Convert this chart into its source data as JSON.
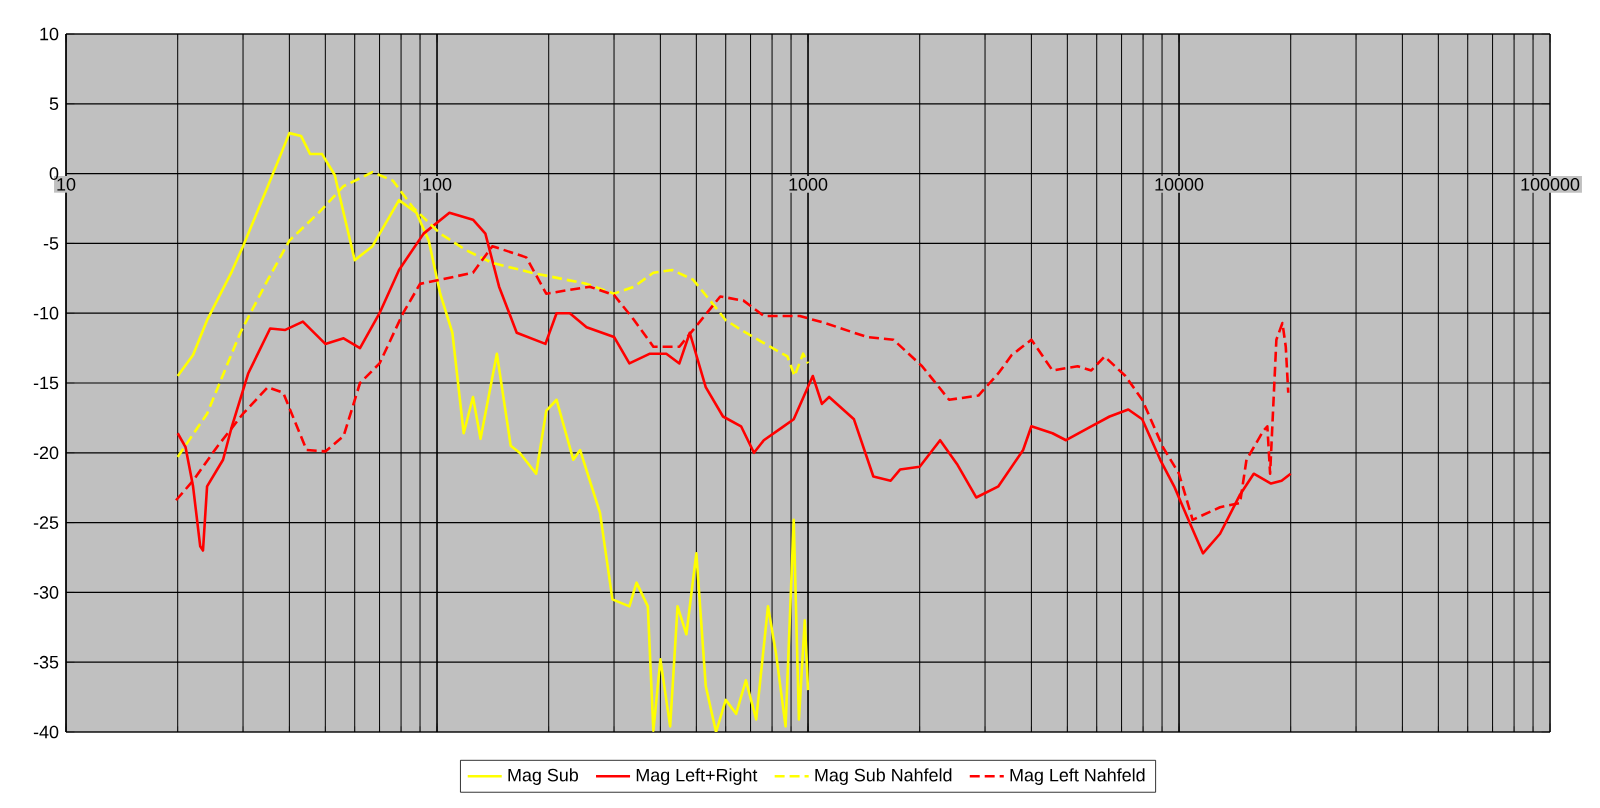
{
  "chart_data": {
    "type": "line",
    "log": "x",
    "grid": true,
    "legend": "bottom",
    "marker": "none",
    "xlim": [
      10,
      100000
    ],
    "xticks": [
      10,
      100,
      1000,
      10000,
      100000
    ],
    "ylim": [
      -40,
      10
    ],
    "yticks": [
      -40,
      -35,
      -30,
      -25,
      -20,
      -15,
      -10,
      -5,
      0,
      5,
      10
    ],
    "series": [
      {
        "name": "Mag Sub",
        "color": "#ffff00",
        "line_style": "solid",
        "x": [
          20,
          22,
          24,
          28,
          30,
          35,
          40,
          43,
          45.5,
          49,
          53,
          60,
          67,
          79,
          88,
          95,
          102,
          110,
          118,
          125,
          131,
          145,
          158,
          167,
          185,
          197,
          210,
          233,
          243,
          275,
          297,
          330,
          345,
          370,
          383,
          400,
          425,
          445,
          470,
          500,
          530,
          565,
          600,
          640,
          680,
          725,
          780,
          820,
          870,
          915,
          945,
          980,
          1000
        ],
        "values": [
          -14.5,
          -13,
          -10.5,
          -7,
          -5.2,
          -0.9,
          2.9,
          2.7,
          1.4,
          1.4,
          -0.1,
          -6.2,
          -5.2,
          -1.9,
          -2.8,
          -4.8,
          -8.6,
          -11.4,
          -18.6,
          -16,
          -19,
          -12.9,
          -19.5,
          -20,
          -21.5,
          -17,
          -16.2,
          -20.5,
          -19.8,
          -24.3,
          -30.5,
          -31,
          -29.3,
          -31,
          -39.9,
          -34.8,
          -39.6,
          -31,
          -33,
          -27.2,
          -36.7,
          -40,
          -37.7,
          -38.7,
          -36.3,
          -39.1,
          -31,
          -34.4,
          -39.6,
          -24.8,
          -39.1,
          -32,
          -37
        ]
      },
      {
        "name": "Mag Left+Right",
        "color": "#ff0000",
        "line_style": "solid",
        "x": [
          20,
          21,
          22,
          23,
          23.4,
          24,
          26.5,
          28,
          31,
          35.5,
          39,
          43.5,
          50,
          56,
          62,
          70,
          79,
          92,
          108,
          125,
          135,
          147,
          164,
          196,
          210,
          228,
          253,
          300,
          330,
          375,
          415,
          450,
          480,
          530,
          590,
          660,
          715,
          760,
          850,
          915,
          1030,
          1090,
          1140,
          1330,
          1500,
          1670,
          1770,
          2000,
          2270,
          2520,
          2840,
          3260,
          3800,
          4000,
          4560,
          4960,
          5800,
          6500,
          7300,
          7960,
          8900,
          9700,
          10600,
          11600,
          12900,
          14600,
          15900,
          17700,
          18900,
          20000
        ],
        "values": [
          -18.6,
          -19.6,
          -22.4,
          -26.7,
          -27,
          -22.4,
          -20.5,
          -18.1,
          -14.3,
          -11.1,
          -11.2,
          -10.6,
          -12.2,
          -11.8,
          -12.5,
          -10,
          -6.9,
          -4.3,
          -2.8,
          -3.3,
          -4.3,
          -8.1,
          -11.4,
          -12.2,
          -10,
          -10,
          -11,
          -11.7,
          -13.6,
          -12.9,
          -12.9,
          -13.6,
          -11.4,
          -15.3,
          -17.4,
          -18.1,
          -20,
          -19.1,
          -18.2,
          -17.6,
          -14.5,
          -16.5,
          -16,
          -17.6,
          -21.7,
          -22,
          -21.2,
          -21,
          -19.1,
          -20.8,
          -23.2,
          -22.4,
          -19.8,
          -18.1,
          -18.6,
          -19.1,
          -18.1,
          -17.4,
          -16.9,
          -17.6,
          -20.5,
          -22.4,
          -24.8,
          -27.2,
          -25.8,
          -23,
          -21.5,
          -22.2,
          -22,
          -21.5
        ]
      },
      {
        "name": "Mag Sub Nahfeld",
        "color": "#ffff00",
        "line_style": "dashed",
        "x": [
          20,
          24,
          29.5,
          35,
          40,
          48,
          56,
          67,
          76,
          86,
          102,
          120,
          141,
          180,
          253,
          300,
          340,
          383,
          430,
          490,
          545,
          600,
          680,
          790,
          880,
          920,
          970,
          1000
        ],
        "values": [
          -20.3,
          -17.2,
          -11.4,
          -7.6,
          -4.8,
          -2.8,
          -0.9,
          0.1,
          -0.5,
          -2.4,
          -4.3,
          -5.5,
          -6.4,
          -7.1,
          -7.9,
          -8.6,
          -8.1,
          -7.1,
          -6.9,
          -7.6,
          -9.1,
          -10.5,
          -11.4,
          -12.4,
          -13.1,
          -14.5,
          -12.9,
          -13.6
        ]
      },
      {
        "name": "Mag Left Nahfeld",
        "color": "#ff0000",
        "line_style": "dashed",
        "x": [
          19.8,
          22,
          25.5,
          30,
          35,
          38.5,
          44.5,
          50,
          56,
          62,
          70,
          81,
          90,
          102,
          125,
          141,
          174,
          197,
          258,
          300,
          340,
          383,
          450,
          515,
          580,
          670,
          760,
          950,
          1110,
          1440,
          1700,
          2030,
          2400,
          2880,
          3260,
          3540,
          4000,
          4560,
          5330,
          5800,
          6300,
          7170,
          7960,
          9050,
          10000,
          10880,
          12900,
          14600,
          15200,
          16900,
          17300,
          17600,
          18300,
          19000,
          19400,
          19700
        ],
        "values": [
          -23.4,
          -22,
          -19.6,
          -17.2,
          -15.3,
          -15.7,
          -19.8,
          -19.9,
          -18.8,
          -15,
          -13.6,
          -10,
          -7.9,
          -7.6,
          -7.1,
          -5.2,
          -6,
          -8.6,
          -8.1,
          -8.7,
          -10.5,
          -12.4,
          -12.4,
          -10.5,
          -8.8,
          -9.1,
          -10.2,
          -10.2,
          -10.7,
          -11.7,
          -11.9,
          -13.8,
          -16.2,
          -15.9,
          -14.3,
          -13,
          -11.9,
          -14.1,
          -13.8,
          -14.1,
          -13.1,
          -14.5,
          -16.2,
          -19.6,
          -21.5,
          -24.8,
          -23.9,
          -23.6,
          -20.5,
          -18.4,
          -18.1,
          -21.5,
          -11.9,
          -10.7,
          -12.4,
          -15.7
        ]
      }
    ]
  }
}
